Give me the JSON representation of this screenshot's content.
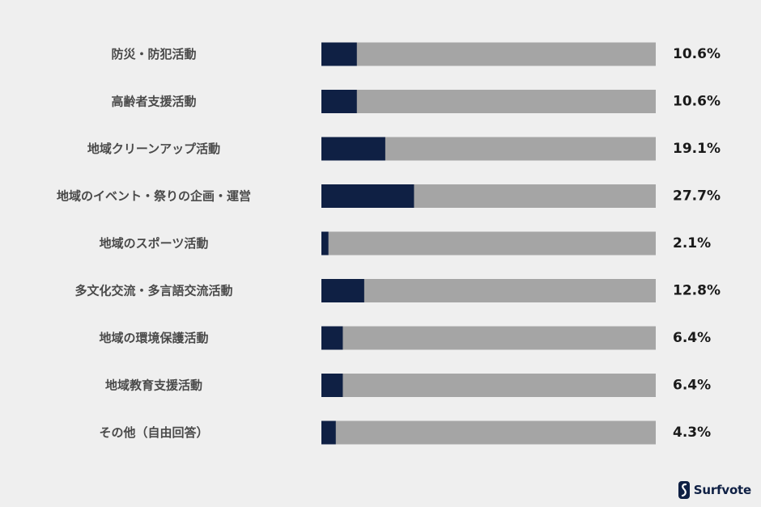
{
  "chart_data": {
    "type": "bar",
    "orientation": "horizontal",
    "stacked_remainder": true,
    "categories": [
      "防災・防犯活動",
      "高齢者支援活動",
      "地域クリーンアップ活動",
      "地域のイベント・祭りの企画・運営",
      "地域のスポーツ活動",
      "多文化交流・多言語交流活動",
      "地域の環境保護活動",
      "地域教育支援活動",
      "その他（自由回答）"
    ],
    "values": [
      10.6,
      10.6,
      19.1,
      27.7,
      2.1,
      12.8,
      6.4,
      6.4,
      4.3
    ],
    "value_labels": [
      "10.6%",
      "10.6%",
      "19.1%",
      "27.7%",
      "2.1%",
      "12.8%",
      "6.4%",
      "6.4%",
      "4.3%"
    ],
    "xlim": [
      0,
      100
    ],
    "colors": {
      "value": "#0f2044",
      "remainder": "#a5a5a5",
      "background": "#efefef"
    },
    "grid": false,
    "legend": "none"
  },
  "branding": {
    "logo_text": "Surfvote"
  }
}
